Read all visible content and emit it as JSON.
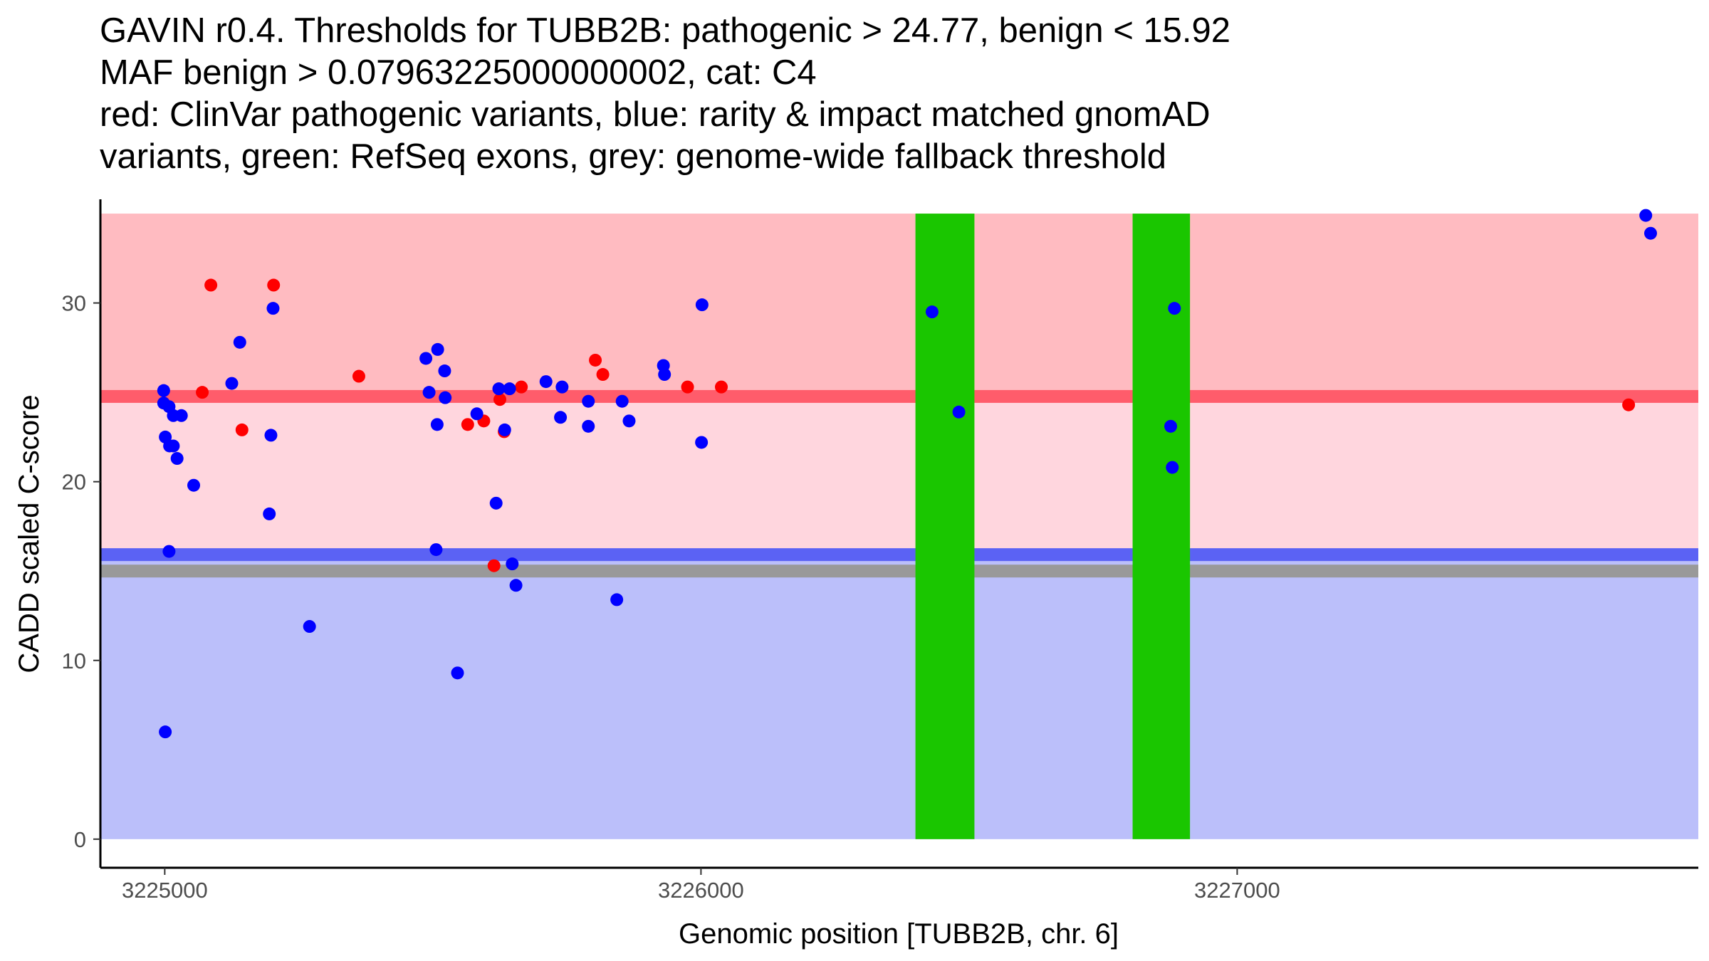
{
  "chart_data": {
    "type": "scatter",
    "title_lines": [
      "GAVIN r0.4. Thresholds for TUBB2B: pathogenic > 24.77, benign < 15.92",
      "MAF benign > 0.07963225000000002, cat: C4",
      "red: ClinVar pathogenic variants, blue: rarity & impact matched gnomAD",
      "variants, green: RefSeq exons, grey: genome-wide fallback threshold"
    ],
    "xlabel": "Genomic position [TUBB2B, chr. 6]",
    "ylabel": "CADD scaled C-score",
    "xlim": [
      3224880,
      3227860
    ],
    "ylim": [
      -1.6,
      35.8
    ],
    "x_ticks": [
      3225000,
      3226000,
      3227000
    ],
    "y_ticks": [
      0,
      10,
      20,
      30
    ],
    "grid": false,
    "regions": {
      "pathogenic": {
        "from": 24.77,
        "to": 35.0,
        "color": "#ffbbc1"
      },
      "intermediate": {
        "from": 15.92,
        "to": 24.77,
        "color": "#ffd6de"
      },
      "benign": {
        "from": 0,
        "to": 15.92,
        "color": "#bbbffa"
      }
    },
    "threshold_lines": {
      "pathogenic": {
        "y": 24.77,
        "color": "#ff5c6b"
      },
      "benign": {
        "y": 15.92,
        "color": "#5b62f4"
      },
      "fallback": {
        "y": 15.0,
        "color": "#999999"
      }
    },
    "exons": {
      "color": "#1ac600",
      "ranges": [
        [
          3226400,
          3226510
        ],
        [
          3226805,
          3226912
        ]
      ],
      "y_range": [
        0,
        35.0
      ]
    },
    "series": [
      {
        "name": "ClinVar pathogenic variants",
        "color": "#ff0000",
        "points": [
          [
            3225086,
            31.0
          ],
          [
            3225203,
            31.0
          ],
          [
            3225070,
            25.0
          ],
          [
            3225144,
            22.9
          ],
          [
            3225362,
            25.9
          ],
          [
            3225565,
            23.2
          ],
          [
            3225595,
            23.4
          ],
          [
            3225625,
            24.6
          ],
          [
            3225633,
            22.8
          ],
          [
            3225665,
            25.3
          ],
          [
            3225614,
            15.3
          ],
          [
            3225803,
            26.8
          ],
          [
            3225817,
            26.0
          ],
          [
            3225975,
            25.3
          ],
          [
            3226038,
            25.3
          ],
          [
            3227730,
            24.3
          ]
        ]
      },
      {
        "name": "rarity & impact matched gnomAD variants",
        "color": "#0000ff",
        "points": [
          [
            3224998,
            25.1
          ],
          [
            3224998,
            24.4
          ],
          [
            3225008,
            24.2
          ],
          [
            3225016,
            23.7
          ],
          [
            3225031,
            23.7
          ],
          [
            3225001,
            22.5
          ],
          [
            3225009,
            22.0
          ],
          [
            3225016,
            22.0
          ],
          [
            3225023,
            21.3
          ],
          [
            3225054,
            19.8
          ],
          [
            3225008,
            16.1
          ],
          [
            3225001,
            6.0
          ],
          [
            3225125,
            25.5
          ],
          [
            3225140,
            27.8
          ],
          [
            3225202,
            29.7
          ],
          [
            3225198,
            22.6
          ],
          [
            3225195,
            18.2
          ],
          [
            3225270,
            11.9
          ],
          [
            3225487,
            26.9
          ],
          [
            3225493,
            25.0
          ],
          [
            3225509,
            27.4
          ],
          [
            3225522,
            26.2
          ],
          [
            3225523,
            24.7
          ],
          [
            3225508,
            23.2
          ],
          [
            3225582,
            23.8
          ],
          [
            3225623,
            25.2
          ],
          [
            3225643,
            25.2
          ],
          [
            3225634,
            22.9
          ],
          [
            3225618,
            18.8
          ],
          [
            3225506,
            16.2
          ],
          [
            3225648,
            15.4
          ],
          [
            3225655,
            14.2
          ],
          [
            3225546,
            9.3
          ],
          [
            3225711,
            25.6
          ],
          [
            3225741,
            25.3
          ],
          [
            3225738,
            23.6
          ],
          [
            3225790,
            24.5
          ],
          [
            3225790,
            23.1
          ],
          [
            3225853,
            24.5
          ],
          [
            3225866,
            23.4
          ],
          [
            3225930,
            26.5
          ],
          [
            3225932,
            26.0
          ],
          [
            3226002,
            29.9
          ],
          [
            3226001,
            22.2
          ],
          [
            3225843,
            13.4
          ],
          [
            3226431,
            29.5
          ],
          [
            3226481,
            23.9
          ],
          [
            3226883,
            29.7
          ],
          [
            3226876,
            23.1
          ],
          [
            3226879,
            20.8
          ],
          [
            3227762,
            34.9
          ],
          [
            3227771,
            33.9
          ]
        ]
      }
    ]
  }
}
